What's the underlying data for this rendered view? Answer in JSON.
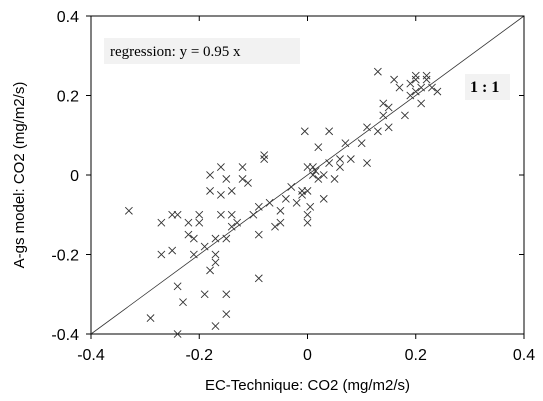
{
  "chart_data": {
    "type": "scatter",
    "title": "",
    "xlabel": "EC-Technique: CO2 (mg/m2/s)",
    "ylabel": "A-gs model: CO2 (mg/m2/s)",
    "xlim": [
      -0.4,
      0.4
    ],
    "ylim": [
      -0.4,
      0.4
    ],
    "xticks": [
      -0.4,
      -0.2,
      0,
      0.2,
      0.4
    ],
    "yticks": [
      -0.4,
      -0.2,
      0,
      0.2,
      0.4
    ],
    "tick_labels_x": [
      "-0.4",
      "-0.2",
      "0",
      "0.2",
      "0.4"
    ],
    "tick_labels_y": [
      "-0.4",
      "-0.2",
      "0",
      "0.2",
      "0.4"
    ],
    "grid": false,
    "marker": "x",
    "annotations": {
      "regression": "regression: y = 0.95 x",
      "ratio": "1 : 1"
    },
    "reference_line": {
      "slope": 1,
      "intercept": 0
    },
    "points": [
      [
        -0.33,
        -0.09
      ],
      [
        -0.29,
        -0.36
      ],
      [
        -0.27,
        -0.2
      ],
      [
        -0.27,
        -0.12
      ],
      [
        -0.25,
        -0.19
      ],
      [
        -0.25,
        -0.1
      ],
      [
        -0.24,
        -0.4
      ],
      [
        -0.24,
        -0.28
      ],
      [
        -0.24,
        -0.1
      ],
      [
        -0.23,
        -0.32
      ],
      [
        -0.22,
        -0.15
      ],
      [
        -0.22,
        -0.12
      ],
      [
        -0.21,
        -0.2
      ],
      [
        -0.21,
        -0.16
      ],
      [
        -0.2,
        -0.1
      ],
      [
        -0.2,
        -0.12
      ],
      [
        -0.19,
        -0.3
      ],
      [
        -0.19,
        -0.18
      ],
      [
        -0.18,
        0.0
      ],
      [
        -0.18,
        -0.04
      ],
      [
        -0.18,
        -0.24
      ],
      [
        -0.17,
        -0.22
      ],
      [
        -0.17,
        -0.2
      ],
      [
        -0.17,
        -0.16
      ],
      [
        -0.17,
        -0.38
      ],
      [
        -0.16,
        0.02
      ],
      [
        -0.16,
        -0.05
      ],
      [
        -0.16,
        -0.1
      ],
      [
        -0.15,
        -0.16
      ],
      [
        -0.15,
        -0.3
      ],
      [
        -0.15,
        -0.35
      ],
      [
        -0.15,
        -0.01
      ],
      [
        -0.14,
        -0.04
      ],
      [
        -0.14,
        -0.1
      ],
      [
        -0.14,
        -0.13
      ],
      [
        -0.13,
        -0.12
      ],
      [
        -0.12,
        0.02
      ],
      [
        -0.12,
        -0.01
      ],
      [
        -0.11,
        -0.02
      ],
      [
        -0.1,
        -0.1
      ],
      [
        -0.09,
        -0.26
      ],
      [
        -0.09,
        -0.15
      ],
      [
        -0.09,
        -0.08
      ],
      [
        -0.08,
        0.04
      ],
      [
        -0.08,
        0.05
      ],
      [
        -0.07,
        -0.07
      ],
      [
        -0.06,
        -0.13
      ],
      [
        -0.05,
        -0.12
      ],
      [
        -0.05,
        -0.09
      ],
      [
        -0.04,
        -0.06
      ],
      [
        -0.03,
        -0.03
      ],
      [
        -0.02,
        -0.07
      ],
      [
        -0.01,
        -0.04
      ],
      [
        -0.01,
        -0.05
      ],
      [
        -0.005,
        0.11
      ],
      [
        0.0,
        0.02
      ],
      [
        0.0,
        -0.1
      ],
      [
        0.0,
        -0.12
      ],
      [
        0.0,
        -0.04
      ],
      [
        0.005,
        -0.08
      ],
      [
        0.01,
        0.0
      ],
      [
        0.01,
        0.02
      ],
      [
        0.015,
        0.01
      ],
      [
        0.02,
        0.07
      ],
      [
        0.02,
        -0.01
      ],
      [
        0.03,
        0.0
      ],
      [
        0.03,
        -0.06
      ],
      [
        0.04,
        0.11
      ],
      [
        0.04,
        0.03
      ],
      [
        0.05,
        -0.01
      ],
      [
        0.06,
        0.04
      ],
      [
        0.06,
        0.02
      ],
      [
        0.07,
        0.08
      ],
      [
        0.08,
        0.04
      ],
      [
        0.1,
        0.08
      ],
      [
        0.11,
        0.12
      ],
      [
        0.11,
        0.03
      ],
      [
        0.13,
        0.26
      ],
      [
        0.13,
        0.11
      ],
      [
        0.14,
        0.18
      ],
      [
        0.14,
        0.15
      ],
      [
        0.15,
        0.17
      ],
      [
        0.15,
        0.12
      ],
      [
        0.16,
        0.24
      ],
      [
        0.17,
        0.22
      ],
      [
        0.18,
        0.15
      ],
      [
        0.19,
        0.23
      ],
      [
        0.19,
        0.2
      ],
      [
        0.2,
        0.25
      ],
      [
        0.2,
        0.24
      ],
      [
        0.2,
        0.21
      ],
      [
        0.21,
        0.22
      ],
      [
        0.21,
        0.18
      ],
      [
        0.22,
        0.25
      ],
      [
        0.22,
        0.24
      ],
      [
        0.23,
        0.22
      ],
      [
        0.24,
        0.21
      ]
    ]
  }
}
